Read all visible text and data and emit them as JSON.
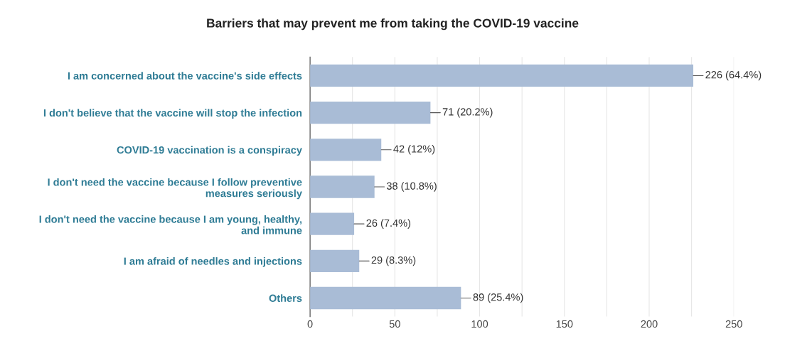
{
  "chart_data": {
    "type": "bar",
    "orientation": "horizontal",
    "title": "Barriers that may prevent me from taking the COVID-19 vaccine",
    "categories": [
      "I am concerned about the vaccine's side effects",
      "I don't believe that the vaccine will stop the infection",
      "COVID-19 vaccination is a conspiracy",
      "I don't need the vaccine because I follow preventive\nmeasures seriously",
      "I don't need the vaccine because I am young, healthy,\nand immune",
      "I am afraid of needles and injections",
      "Others"
    ],
    "values": [
      226,
      71,
      42,
      38,
      26,
      29,
      89
    ],
    "value_labels": [
      "226 (64.4%)",
      "71 (20.2%)",
      "42 (12%)",
      "38 (10.8%)",
      "26 (7.4%)",
      "29 (8.3%)",
      "89 (25.4%)"
    ],
    "color": "#a9bcd6",
    "xlim": [
      0,
      250
    ],
    "xticks": [
      0,
      {
        "value": 25,
        "label": null
      },
      50,
      {
        "value": 75,
        "label": null
      },
      100,
      {
        "value": 125,
        "label": null
      },
      150,
      {
        "value": 175,
        "label": null
      },
      200,
      {
        "value": 225,
        "label": null
      },
      250
    ],
    "grid": "x"
  }
}
